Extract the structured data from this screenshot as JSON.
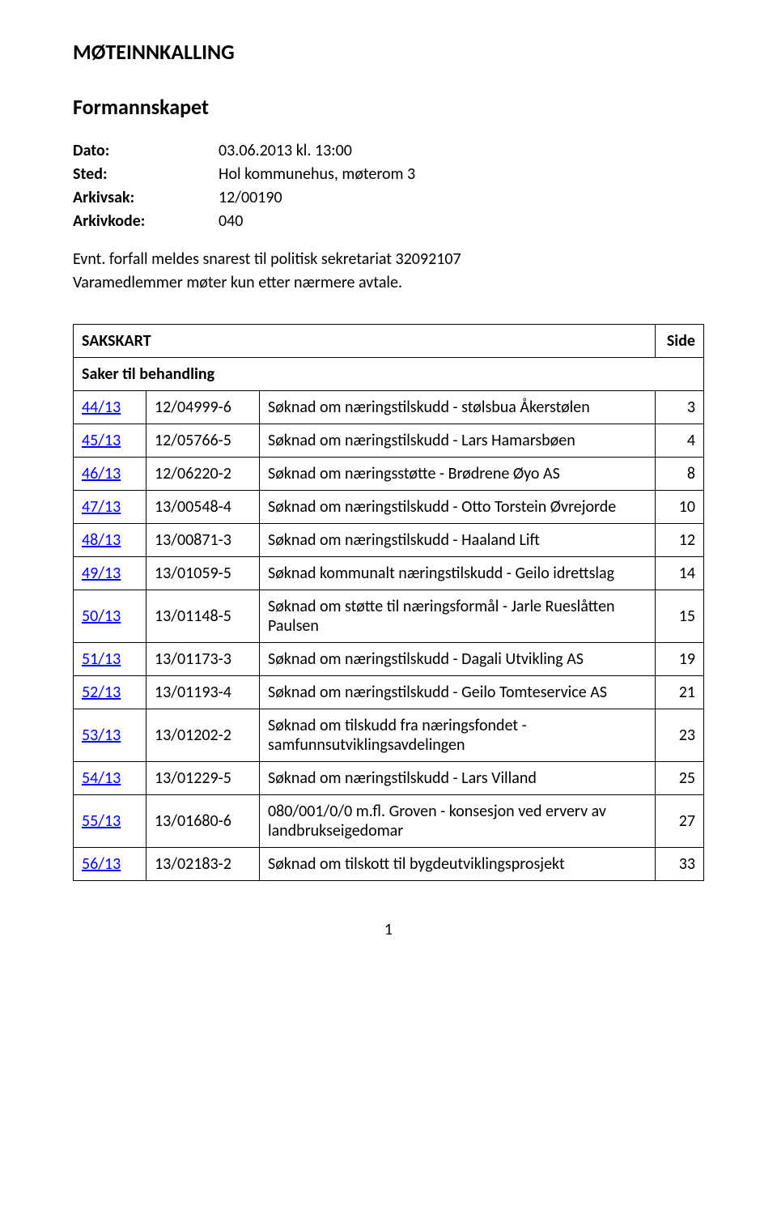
{
  "title": "MØTEINNKALLING",
  "subtitle": "Formannskapet",
  "meta": {
    "dato_label": "Dato:",
    "dato_value": "03.06.2013 kl. 13:00",
    "sted_label": "Sted:",
    "sted_value": "Hol kommunehus, møterom 3",
    "arkivsak_label": "Arkivsak:",
    "arkivsak_value": "12/00190",
    "arkivkode_label": "Arkivkode:",
    "arkivkode_value": "040"
  },
  "note": "Evnt. forfall meldes snarest til politisk sekretariat 32092107\nVaramedlemmer møter kun etter nærmere avtale.",
  "table_head_left": "SAKSKART",
  "table_head_right": "Side",
  "section_title": "Saker til behandling",
  "rows": [
    {
      "no": "44/13",
      "ref": "12/04999-6",
      "title": "Søknad om næringstilskudd - stølsbua Åkerstølen",
      "page": "3"
    },
    {
      "no": "45/13",
      "ref": "12/05766-5",
      "title": "Søknad om næringstilskudd - Lars Hamarsbøen",
      "page": "4"
    },
    {
      "no": "46/13",
      "ref": "12/06220-2",
      "title": "Søknad om næringsstøtte - Brødrene Øyo AS",
      "page": "8"
    },
    {
      "no": "47/13",
      "ref": "13/00548-4",
      "title": "Søknad om næringstilskudd - Otto Torstein Øvrejorde",
      "page": "10"
    },
    {
      "no": "48/13",
      "ref": "13/00871-3",
      "title": "Søknad om næringstilskudd - Haaland Lift",
      "page": "12"
    },
    {
      "no": "49/13",
      "ref": "13/01059-5",
      "title": "Søknad kommunalt næringstilskudd - Geilo idrettslag",
      "page": "14"
    },
    {
      "no": "50/13",
      "ref": "13/01148-5",
      "title": "Søknad om støtte til næringsformål - Jarle Rueslåtten Paulsen",
      "page": "15"
    },
    {
      "no": "51/13",
      "ref": "13/01173-3",
      "title": "Søknad om næringstilskudd - Dagali Utvikling AS",
      "page": "19"
    },
    {
      "no": "52/13",
      "ref": "13/01193-4",
      "title": "Søknad om næringstilskudd - Geilo Tomteservice AS",
      "page": "21"
    },
    {
      "no": "53/13",
      "ref": "13/01202-2",
      "title": "Søknad om tilskudd fra næringsfondet - samfunnsutviklingsavdelingen",
      "page": "23"
    },
    {
      "no": "54/13",
      "ref": "13/01229-5",
      "title": "Søknad om næringstilskudd - Lars Villand",
      "page": "25"
    },
    {
      "no": "55/13",
      "ref": "13/01680-6",
      "title": "080/001/0/0 m.fl. Groven - konsesjon ved erverv av landbrukseigedomar",
      "page": "27"
    },
    {
      "no": "56/13",
      "ref": "13/02183-2",
      "title": "Søknad om tilskott til bygdeutviklingsprosjekt",
      "page": "33"
    }
  ],
  "page_number": "1"
}
